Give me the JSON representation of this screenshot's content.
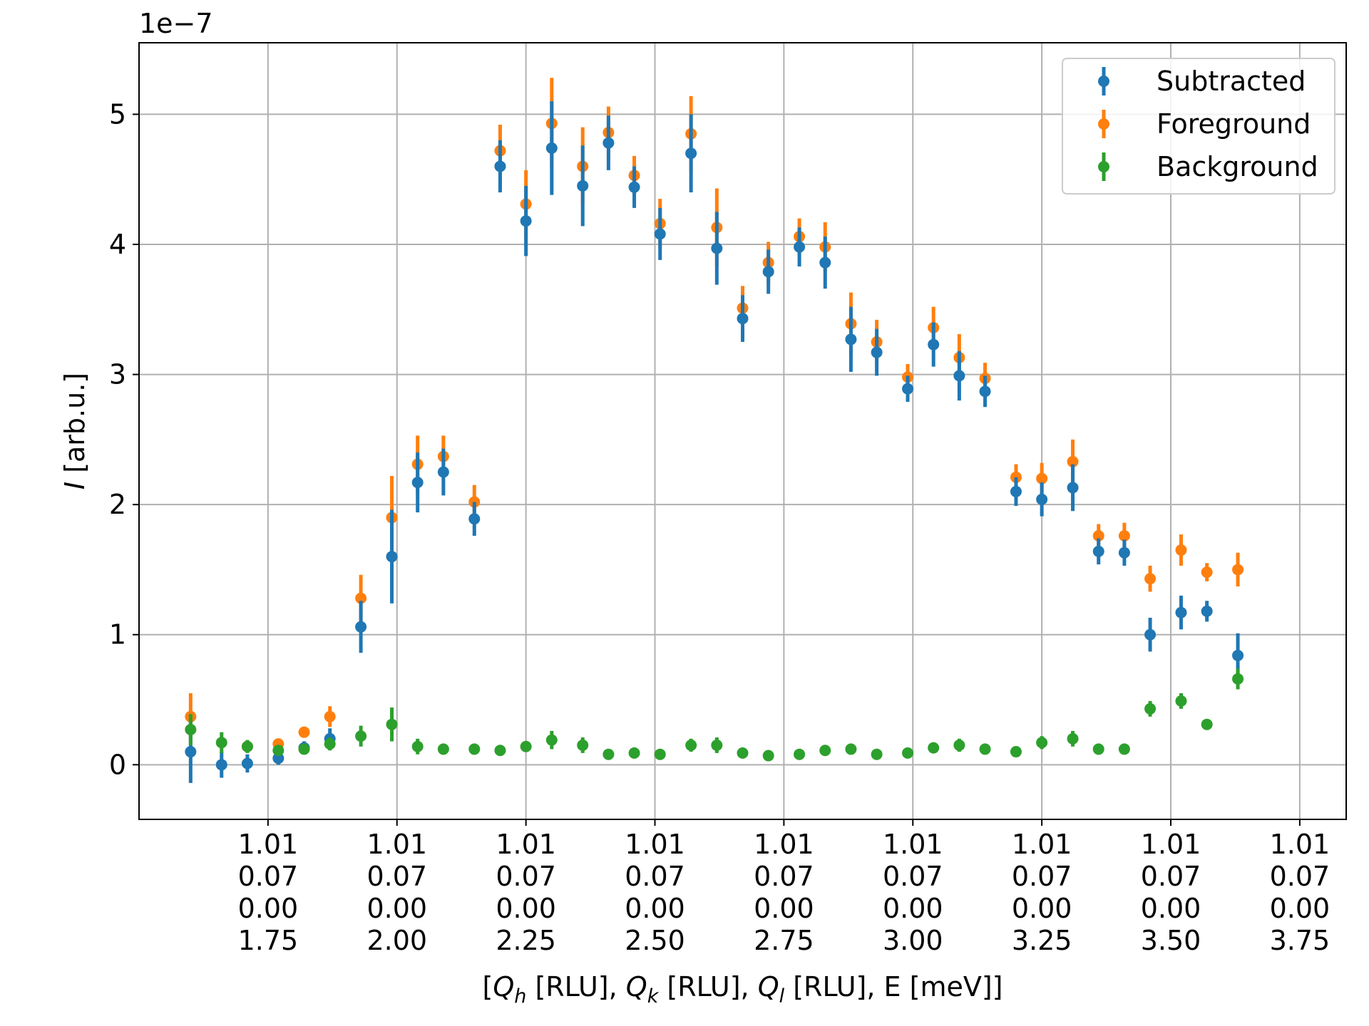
{
  "chart_data": {
    "type": "scatter",
    "offset_label": "1e−7",
    "ylabel": {
      "italic": "I",
      "rest": " [arb.u.]"
    },
    "xlabel": [
      {
        "t": "[",
        "s": ""
      },
      {
        "t": "Q",
        "s": "i"
      },
      {
        "t": "h",
        "s": "sub"
      },
      {
        "t": " [RLU], ",
        "s": ""
      },
      {
        "t": "Q",
        "s": "i"
      },
      {
        "t": "k",
        "s": "sub"
      },
      {
        "t": " [RLU], ",
        "s": ""
      },
      {
        "t": "Q",
        "s": "i"
      },
      {
        "t": "l",
        "s": "sub"
      },
      {
        "t": " [RLU], E [meV]]",
        "s": ""
      }
    ],
    "xlim": [
      1.5,
      3.84
    ],
    "ylim": [
      -0.42,
      5.55
    ],
    "y_ticks": [
      0,
      1,
      2,
      3,
      4,
      5
    ],
    "y_tick_labels": [
      "0",
      "1",
      "2",
      "3",
      "4",
      "5"
    ],
    "x_ticks": [
      1.75,
      2.0,
      2.25,
      2.5,
      2.75,
      3.0,
      3.25,
      3.5,
      3.75
    ],
    "x_tick_labels": [
      [
        "1.01",
        "0.07",
        "0.00",
        "1.75"
      ],
      [
        "1.01",
        "0.07",
        "0.00",
        "2.00"
      ],
      [
        "1.01",
        "0.07",
        "0.00",
        "2.25"
      ],
      [
        "1.01",
        "0.07",
        "0.00",
        "2.50"
      ],
      [
        "1.01",
        "0.07",
        "0.00",
        "2.75"
      ],
      [
        "1.01",
        "0.07",
        "0.00",
        "3.00"
      ],
      [
        "1.01",
        "0.07",
        "0.00",
        "3.25"
      ],
      [
        "1.01",
        "0.07",
        "0.00",
        "3.50"
      ],
      [
        "1.01",
        "0.07",
        "0.00",
        "3.75"
      ]
    ],
    "grid": true,
    "legend_position": "top-right",
    "x": [
      1.6,
      1.66,
      1.71,
      1.77,
      1.82,
      1.87,
      1.93,
      1.99,
      2.04,
      2.09,
      2.15,
      2.2,
      2.25,
      2.3,
      2.36,
      2.41,
      2.46,
      2.51,
      2.57,
      2.62,
      2.67,
      2.72,
      2.78,
      2.83,
      2.88,
      2.93,
      2.99,
      3.04,
      3.09,
      3.14,
      3.2,
      3.25,
      3.31,
      3.36,
      3.41,
      3.46,
      3.52,
      3.57,
      3.63,
      3.68
    ],
    "series": [
      {
        "name": "Subtracted",
        "color": "#1f77b4",
        "values": [
          0.1,
          0.0,
          0.01,
          0.05,
          0.13,
          0.2,
          1.06,
          1.6,
          2.17,
          2.25,
          1.89,
          4.6,
          4.18,
          4.74,
          4.45,
          4.78,
          4.44,
          4.08,
          4.7,
          3.97,
          3.43,
          3.79,
          3.98,
          3.86,
          3.27,
          3.17,
          2.89,
          3.23,
          2.99,
          2.87,
          2.1,
          2.04,
          2.13,
          1.64,
          1.63,
          1.0,
          1.17,
          1.18,
          0.84,
          null
        ],
        "errors": [
          0.24,
          0.1,
          0.07,
          0.05,
          0.05,
          0.08,
          0.2,
          0.36,
          0.23,
          0.18,
          0.13,
          0.2,
          0.27,
          0.36,
          0.31,
          0.21,
          0.16,
          0.2,
          0.3,
          0.28,
          0.18,
          0.17,
          0.15,
          0.2,
          0.25,
          0.18,
          0.1,
          0.17,
          0.19,
          0.12,
          0.11,
          0.13,
          0.18,
          0.1,
          0.1,
          0.13,
          0.13,
          0.08,
          0.17,
          null
        ]
      },
      {
        "name": "Foreground",
        "color": "#ff7f0e",
        "values": [
          0.37,
          null,
          0.14,
          0.16,
          0.25,
          0.37,
          1.28,
          1.9,
          2.31,
          2.37,
          2.02,
          4.72,
          4.31,
          4.93,
          4.6,
          4.86,
          4.53,
          4.16,
          4.85,
          4.13,
          3.51,
          3.86,
          4.06,
          3.98,
          3.39,
          3.25,
          2.98,
          3.36,
          3.13,
          2.97,
          2.21,
          2.2,
          2.33,
          1.76,
          1.76,
          1.43,
          1.65,
          1.48,
          1.5,
          null
        ],
        "errors": [
          0.18,
          null,
          0.03,
          0.03,
          0.04,
          0.08,
          0.18,
          0.32,
          0.22,
          0.16,
          0.13,
          0.2,
          0.26,
          0.35,
          0.3,
          0.2,
          0.15,
          0.19,
          0.29,
          0.3,
          0.17,
          0.16,
          0.14,
          0.19,
          0.24,
          0.17,
          0.1,
          0.16,
          0.18,
          0.12,
          0.1,
          0.12,
          0.17,
          0.09,
          0.1,
          0.1,
          0.12,
          0.07,
          0.13,
          null
        ]
      },
      {
        "name": "Background",
        "color": "#2ca02c",
        "values": [
          0.27,
          0.17,
          0.14,
          0.11,
          0.12,
          0.16,
          0.22,
          0.31,
          0.14,
          0.12,
          0.12,
          0.11,
          0.14,
          0.19,
          0.15,
          0.08,
          0.09,
          0.08,
          0.15,
          0.15,
          0.09,
          0.07,
          0.08,
          0.11,
          0.12,
          0.08,
          0.09,
          0.13,
          0.15,
          0.12,
          0.1,
          0.17,
          0.2,
          0.12,
          0.12,
          0.43,
          0.49,
          0.31,
          0.66,
          null
        ],
        "errors": [
          0.12,
          0.08,
          0.05,
          0.04,
          0.04,
          0.05,
          0.08,
          0.13,
          0.06,
          0.04,
          0.04,
          0.04,
          0.04,
          0.07,
          0.06,
          0.03,
          0.03,
          0.03,
          0.05,
          0.06,
          0.03,
          0.03,
          0.03,
          0.04,
          0.04,
          0.03,
          0.03,
          0.04,
          0.05,
          0.04,
          0.04,
          0.05,
          0.06,
          0.04,
          0.04,
          0.06,
          0.06,
          0.03,
          0.08,
          null
        ]
      }
    ]
  }
}
